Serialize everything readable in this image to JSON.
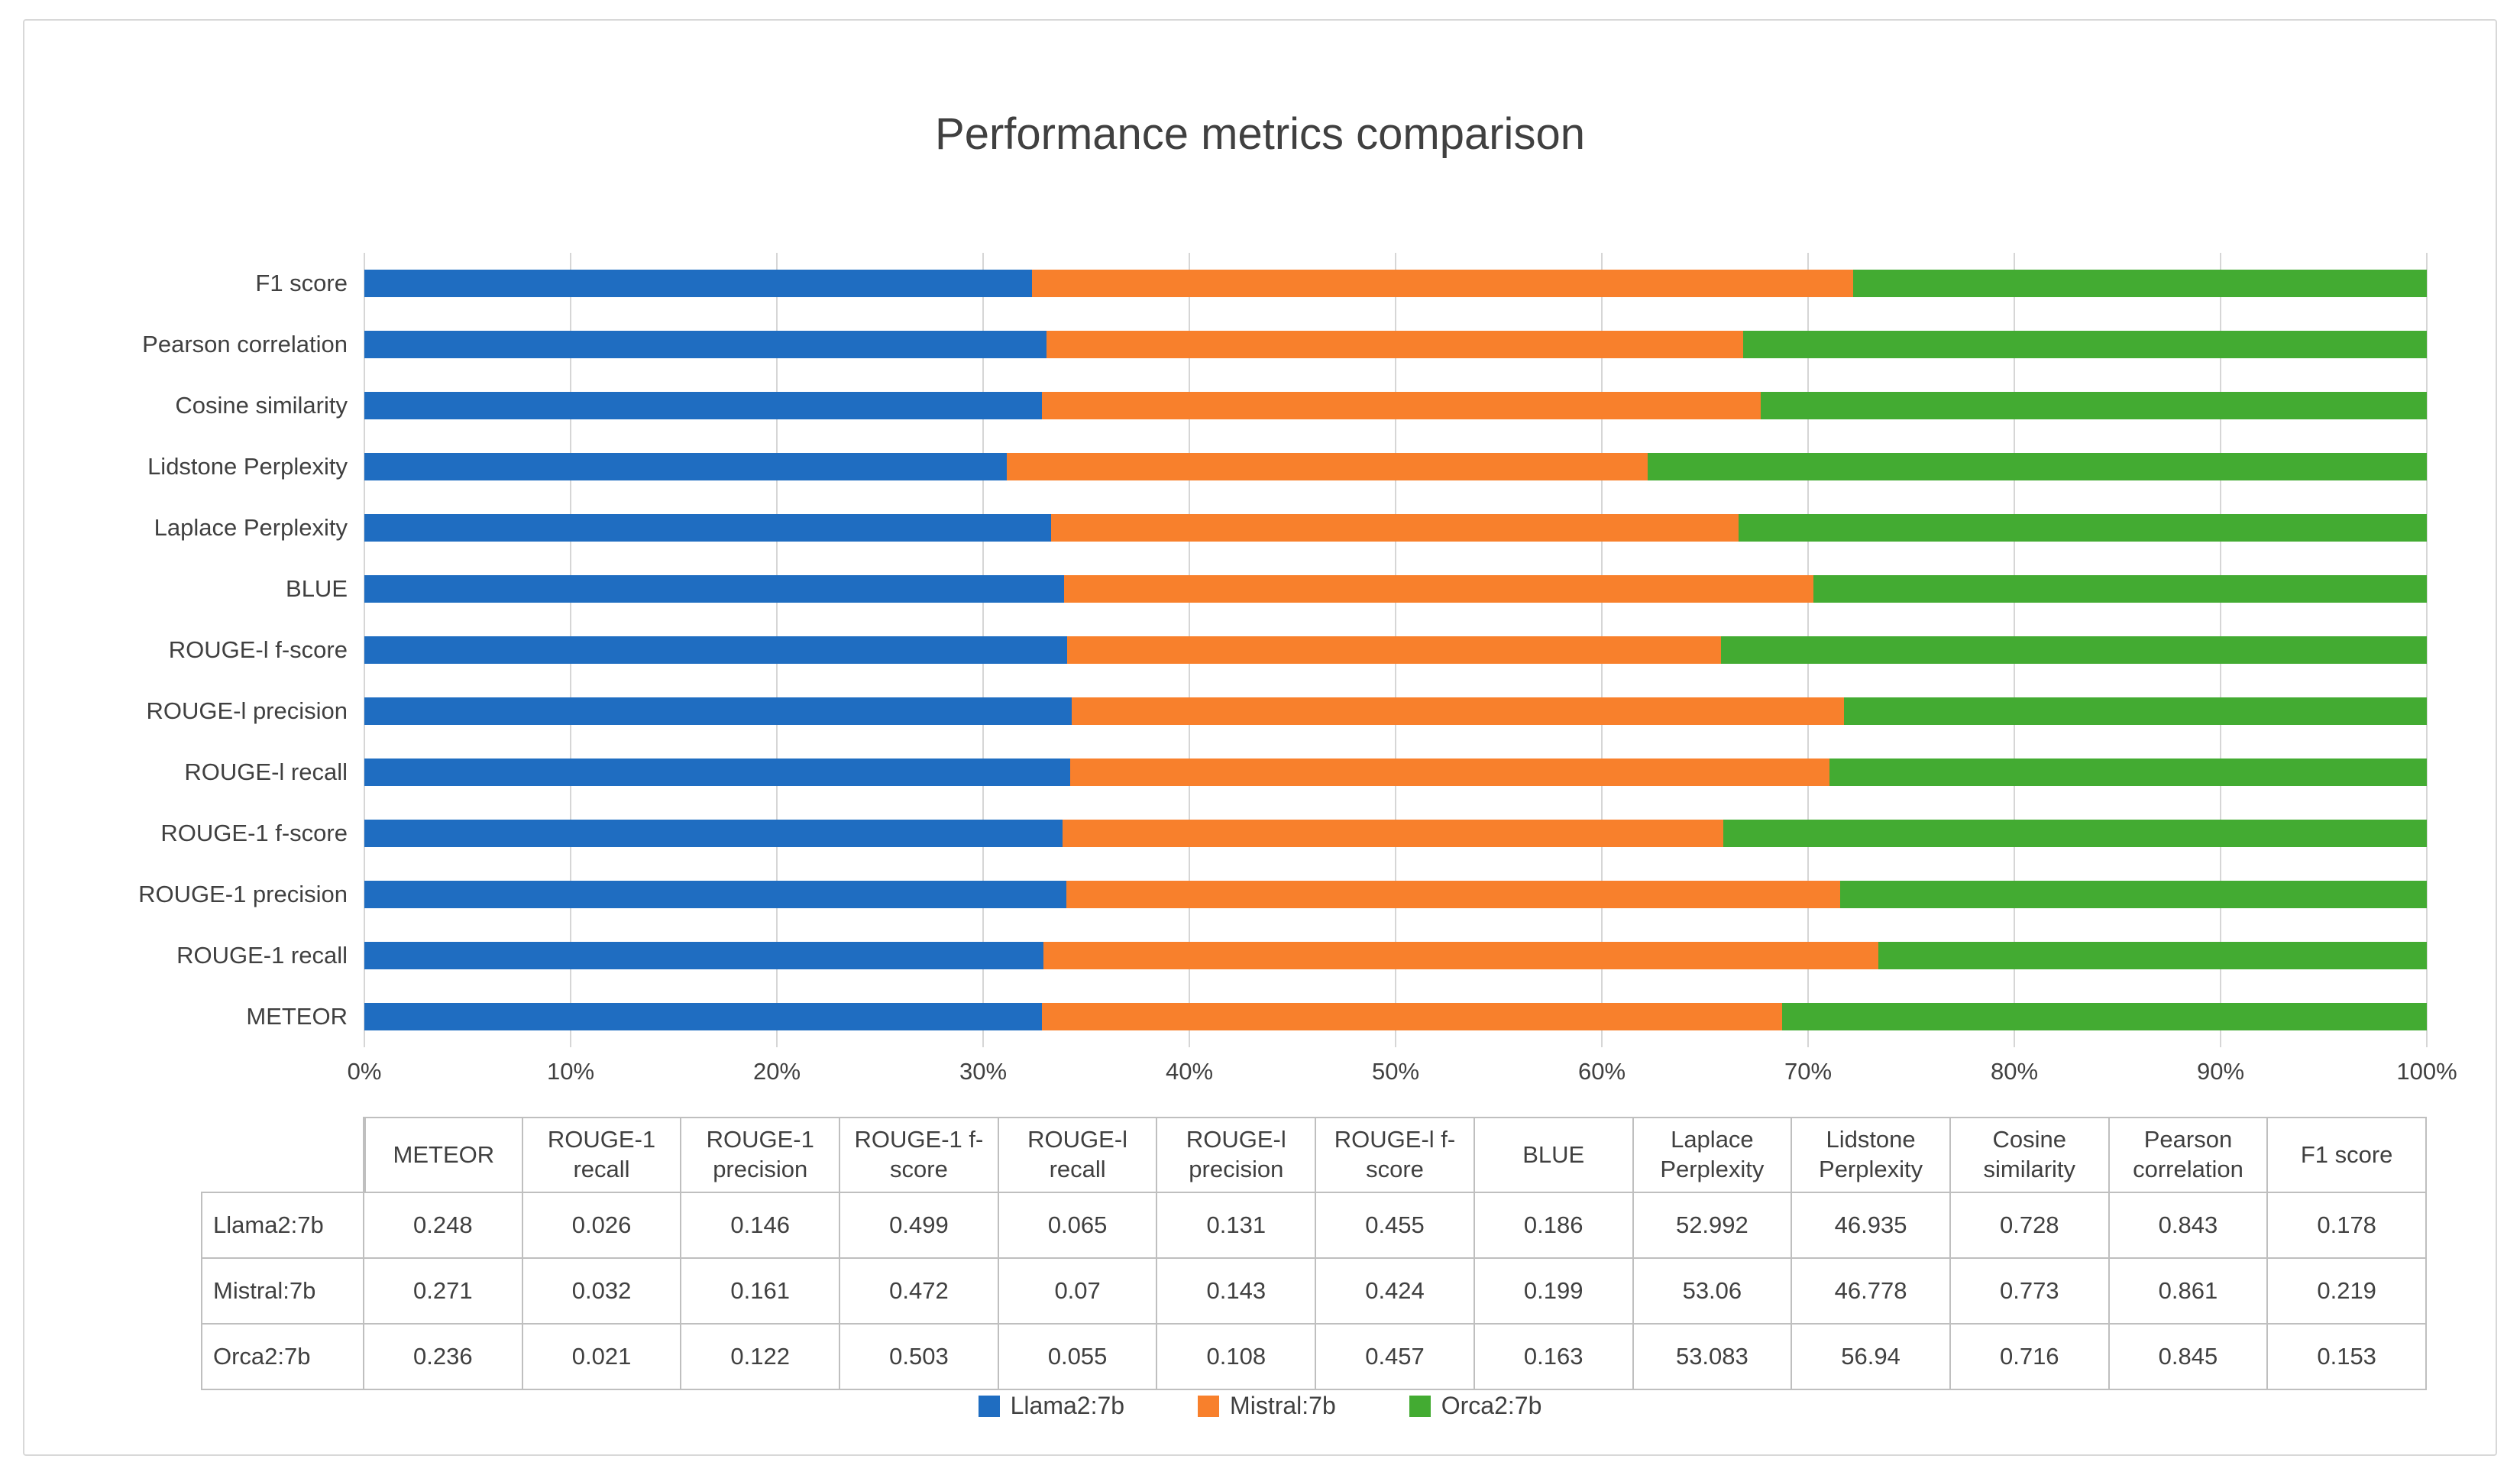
{
  "page": {
    "title": "Performance metrics comparison"
  },
  "chart_data": {
    "type": "bar",
    "orientation": "horizontal",
    "stacked": "100-percent",
    "title": "Performance metrics comparison",
    "categories": [
      "METEOR",
      "ROUGE-1 recall",
      "ROUGE-1 precision",
      "ROUGE-1 f-score",
      "ROUGE-l recall",
      "ROUGE-l precision",
      "ROUGE-l f-score",
      "BLUE",
      "Laplace Perplexity",
      "Lidstone Perplexity",
      "Cosine similarity",
      "Pearson correlation",
      "F1 score"
    ],
    "category_order_note": "rendered bottom-to-top (METEOR bottom bar, F1 score top bar)",
    "series": [
      {
        "name": "Llama2:7b",
        "color": "#1f6dc1",
        "values": [
          0.248,
          0.026,
          0.146,
          0.499,
          0.065,
          0.131,
          0.455,
          0.186,
          52.992,
          46.935,
          0.728,
          0.843,
          0.178
        ]
      },
      {
        "name": "Mistral:7b",
        "color": "#f8802c",
        "values": [
          0.271,
          0.032,
          0.161,
          0.472,
          0.07,
          0.143,
          0.424,
          0.199,
          53.06,
          46.778,
          0.773,
          0.861,
          0.219
        ]
      },
      {
        "name": "Orca2:7b",
        "color": "#43ab32",
        "values": [
          0.236,
          0.021,
          0.122,
          0.503,
          0.055,
          0.108,
          0.457,
          0.163,
          53.083,
          56.94,
          0.716,
          0.845,
          0.153
        ]
      }
    ],
    "x_ticks": [
      "0%",
      "10%",
      "20%",
      "30%",
      "40%",
      "50%",
      "60%",
      "70%",
      "80%",
      "90%",
      "100%"
    ],
    "xlim": [
      0,
      100
    ],
    "grid": true,
    "legend_position": "bottom"
  },
  "table": {
    "corner_label": ""
  },
  "colors": {
    "llama_blue": "#1f6dc1",
    "mistral_orange": "#f8802c",
    "orca_green": "#43ab32",
    "gridline": "#d6d6d6",
    "table_border": "#bfbfbf",
    "text": "#404040"
  }
}
